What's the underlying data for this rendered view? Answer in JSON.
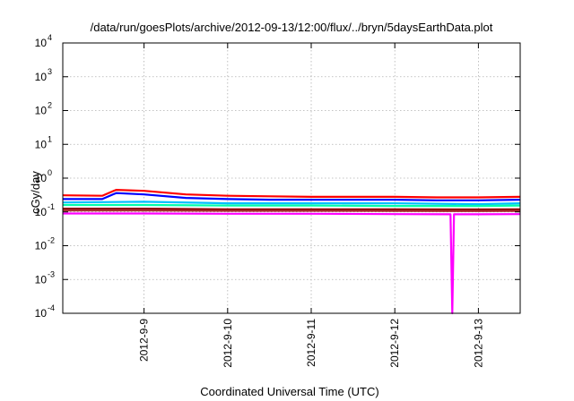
{
  "chart_data": {
    "type": "line",
    "title": "/data/run/goesPlots/archive/2012-09-13/12:00/flux/../bryn/5daysEarthData.plot",
    "xlabel": "Coordinated Universal Time (UTC)",
    "ylabel": "cGy/day",
    "yscale": "log",
    "ylim": [
      0.0001,
      10000
    ],
    "xlim": [
      "2012-09-08 00:40",
      "2012-09-13 12:00"
    ],
    "grid": true,
    "y_ticks": [
      {
        "base": "10",
        "exp": "-4"
      },
      {
        "base": "10",
        "exp": "-3"
      },
      {
        "base": "10",
        "exp": "-2"
      },
      {
        "base": "10",
        "exp": "-1"
      },
      {
        "base": "10",
        "exp": "0"
      },
      {
        "base": "10",
        "exp": "1"
      },
      {
        "base": "10",
        "exp": "2"
      },
      {
        "base": "10",
        "exp": "3"
      },
      {
        "base": "10",
        "exp": "4"
      }
    ],
    "x_ticks": [
      {
        "label": "2012-9-9",
        "date": "2012-09-09"
      },
      {
        "label": "2012-9-10",
        "date": "2012-09-10"
      },
      {
        "label": "2012-9-11",
        "date": "2012-09-11"
      },
      {
        "label": "2012-9-12",
        "date": "2012-09-12"
      },
      {
        "label": "2012-9-13",
        "date": "2012-09-13"
      }
    ],
    "series": [
      {
        "color": "#ff0000",
        "x": [
          "2012-09-08 00:40",
          "2012-09-08 12:00",
          "2012-09-08 16:00",
          "2012-09-09 00:00",
          "2012-09-09 12:00",
          "2012-09-10 00:00",
          "2012-09-10 12:00",
          "2012-09-11 00:00",
          "2012-09-11 12:00",
          "2012-09-12 00:00",
          "2012-09-12 12:00",
          "2012-09-13 00:00",
          "2012-09-13 12:00"
        ],
        "y": [
          0.31,
          0.3,
          0.45,
          0.42,
          0.33,
          0.3,
          0.29,
          0.28,
          0.28,
          0.28,
          0.27,
          0.27,
          0.28
        ]
      },
      {
        "color": "#0000ff",
        "x": [
          "2012-09-08 00:40",
          "2012-09-08 12:00",
          "2012-09-08 16:00",
          "2012-09-09 00:00",
          "2012-09-09 12:00",
          "2012-09-10 00:00",
          "2012-09-10 12:00",
          "2012-09-11 00:00",
          "2012-09-11 12:00",
          "2012-09-12 00:00",
          "2012-09-12 12:00",
          "2012-09-13 00:00",
          "2012-09-13 12:00"
        ],
        "y": [
          0.24,
          0.24,
          0.36,
          0.33,
          0.26,
          0.24,
          0.23,
          0.23,
          0.23,
          0.23,
          0.22,
          0.22,
          0.23
        ]
      },
      {
        "color": "#00bfff",
        "x": [
          "2012-09-08 00:40",
          "2012-09-09 00:00",
          "2012-09-10 00:00",
          "2012-09-11 00:00",
          "2012-09-12 00:00",
          "2012-09-13 00:00",
          "2012-09-13 12:00"
        ],
        "y": [
          0.19,
          0.2,
          0.18,
          0.18,
          0.18,
          0.17,
          0.18
        ]
      },
      {
        "color": "#00ffaa",
        "x": [
          "2012-09-08 00:40",
          "2012-09-09 00:00",
          "2012-09-10 00:00",
          "2012-09-11 00:00",
          "2012-09-12 00:00",
          "2012-09-13 00:00",
          "2012-09-13 12:00"
        ],
        "y": [
          0.16,
          0.16,
          0.155,
          0.155,
          0.15,
          0.15,
          0.155
        ]
      },
      {
        "color": "#8b0000",
        "x": [
          "2012-09-08 00:40",
          "2012-09-09 00:00",
          "2012-09-10 00:00",
          "2012-09-11 00:00",
          "2012-09-12 00:00",
          "2012-09-13 00:00",
          "2012-09-13 12:00"
        ],
        "y": [
          0.125,
          0.125,
          0.12,
          0.12,
          0.12,
          0.118,
          0.12
        ]
      },
      {
        "color": "#a52a2a",
        "x": [
          "2012-09-08 00:40",
          "2012-09-09 00:00",
          "2012-09-10 00:00",
          "2012-09-11 00:00",
          "2012-09-12 00:00",
          "2012-09-13 00:00",
          "2012-09-13 12:00"
        ],
        "y": [
          0.11,
          0.11,
          0.108,
          0.108,
          0.107,
          0.106,
          0.107
        ]
      },
      {
        "color": "#ff00ff",
        "x": [
          "2012-09-08 00:40",
          "2012-09-09 00:00",
          "2012-09-10 00:00",
          "2012-09-11 00:00",
          "2012-09-12 00:00",
          "2012-09-12 16:00",
          "2012-09-12 16:30",
          "2012-09-12 17:00",
          "2012-09-13 00:00",
          "2012-09-13 12:00"
        ],
        "y": [
          0.09,
          0.09,
          0.088,
          0.088,
          0.086,
          0.085,
          0.0001,
          0.085,
          0.085,
          0.086
        ]
      }
    ]
  }
}
